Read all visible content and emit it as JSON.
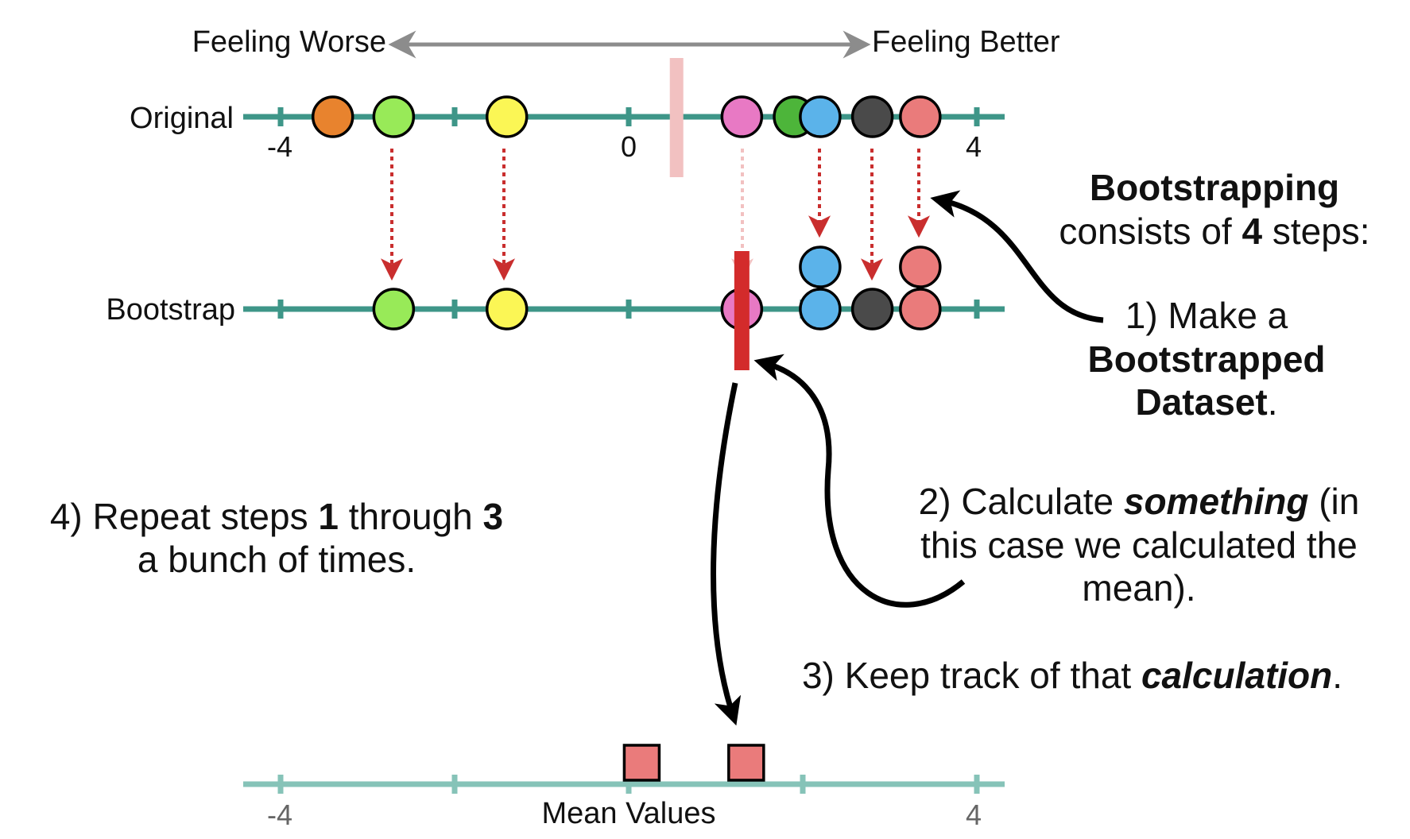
{
  "header": {
    "left_label": "Feeling Worse",
    "right_label": "Feeling Better"
  },
  "axes": {
    "original": {
      "label": "Original",
      "tick_labels": [
        "-4",
        "0",
        "4"
      ],
      "color": "#3e9688",
      "points": [
        {
          "x": -3.4,
          "color": "#e8832e"
        },
        {
          "x": -2.7,
          "color": "#98ea58"
        },
        {
          "x": -1.4,
          "color": "#fbf655"
        },
        {
          "x": 1.3,
          "color": "#e879c4"
        },
        {
          "x": 1.9,
          "color": "#4db53a"
        },
        {
          "x": 2.2,
          "color": "#5bb3ea"
        },
        {
          "x": 2.8,
          "color": "#4a4a4a"
        },
        {
          "x": 3.35,
          "color": "#ea7b7b"
        }
      ],
      "mean_marker": 0.55,
      "mean_marker_color": "#f2c1c1"
    },
    "bootstrap": {
      "label": "Bootstrap",
      "color": "#3e9688",
      "points": [
        {
          "x": -2.7,
          "color": "#98ea58",
          "stack": 0
        },
        {
          "x": -1.4,
          "color": "#fbf655",
          "stack": 0
        },
        {
          "x": 1.3,
          "color": "#e879c4",
          "stack": 0
        },
        {
          "x": 2.2,
          "color": "#5bb3ea",
          "stack": 0
        },
        {
          "x": 2.2,
          "color": "#5bb3ea",
          "stack": 1
        },
        {
          "x": 2.8,
          "color": "#4a4a4a",
          "stack": 0
        },
        {
          "x": 3.35,
          "color": "#ea7b7b",
          "stack": 0
        },
        {
          "x": 3.35,
          "color": "#ea7b7b",
          "stack": 1
        }
      ],
      "mean_marker": 1.3,
      "mean_marker_color": "#d32b2b"
    },
    "means": {
      "label": "Mean Values",
      "tick_labels": [
        "-4",
        "4"
      ],
      "color": "#86c3b8",
      "points": [
        {
          "x": 0.15,
          "color": "#ea7b7b"
        },
        {
          "x": 1.35,
          "color": "#ea7b7b"
        }
      ]
    }
  },
  "annotations": {
    "title": {
      "part1": "Bootstrapping",
      "part2": "consists of ",
      "part3": "4",
      "part4": " steps:"
    },
    "step1": {
      "line1": "1) Make a",
      "line2": "Bootstrapped",
      "line3": "Dataset",
      "line3_end": "."
    },
    "step2": {
      "part1": "2) Calculate ",
      "part2": "something",
      "part3": " (in",
      "line2": "this case we calculated the",
      "line3": "mean)."
    },
    "step3": {
      "part1": "3) Keep track of that ",
      "part2": "calculation",
      "part3": "."
    },
    "step4": {
      "part1": "4) Repeat steps ",
      "part2": "1",
      "part3": " through ",
      "part4": "3",
      "line2": "a bunch of times."
    }
  },
  "colors": {
    "sampling_arrow": "#c92e2e",
    "sampling_arrow_faded": "#f2c1c1",
    "header_arrow": "#8c8c8c",
    "curved_arrow": "#000000"
  }
}
